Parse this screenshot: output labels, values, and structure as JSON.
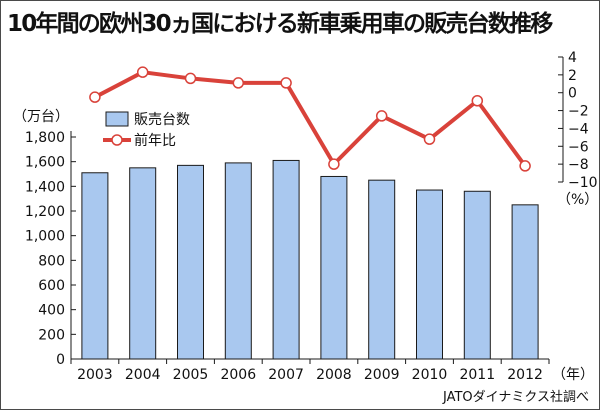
{
  "chart_data": {
    "title": "10年間の欧州30ヵ国における新車乗用車の販売台数推移",
    "type": "bar+line",
    "categories": [
      "2003",
      "2004",
      "2005",
      "2006",
      "2007",
      "2008",
      "2009",
      "2010",
      "2011",
      "2012"
    ],
    "x_unit": "（年）",
    "series": [
      {
        "name": "販売台数",
        "type": "bar",
        "axis": "left",
        "color": "#a9c8ef",
        "values": [
          1510,
          1550,
          1570,
          1590,
          1610,
          1480,
          1450,
          1370,
          1360,
          1250
        ]
      },
      {
        "name": "前年比",
        "type": "line",
        "axis": "right",
        "color": "#d9423a",
        "values": [
          -0.5,
          2.3,
          1.6,
          1.1,
          1.1,
          -8.0,
          -2.6,
          -5.2,
          -0.9,
          -8.2
        ]
      }
    ],
    "left_axis": {
      "unit": "（万台）",
      "ylim": [
        0,
        1800
      ],
      "ticks": [
        "0",
        "200",
        "400",
        "600",
        "800",
        "1,000",
        "1,200",
        "1,400",
        "1,600",
        "1,800"
      ]
    },
    "right_axis": {
      "unit": "（%）",
      "ylim": [
        -10,
        4
      ],
      "ticks": [
        "4",
        "2",
        "0",
        "−2",
        "−4",
        "−6",
        "−8",
        "−10"
      ]
    },
    "legend": {
      "position": "top-left",
      "items": [
        "販売台数",
        "前年比"
      ]
    },
    "grid": false,
    "source": "JATOダイナミクス社調べ"
  }
}
